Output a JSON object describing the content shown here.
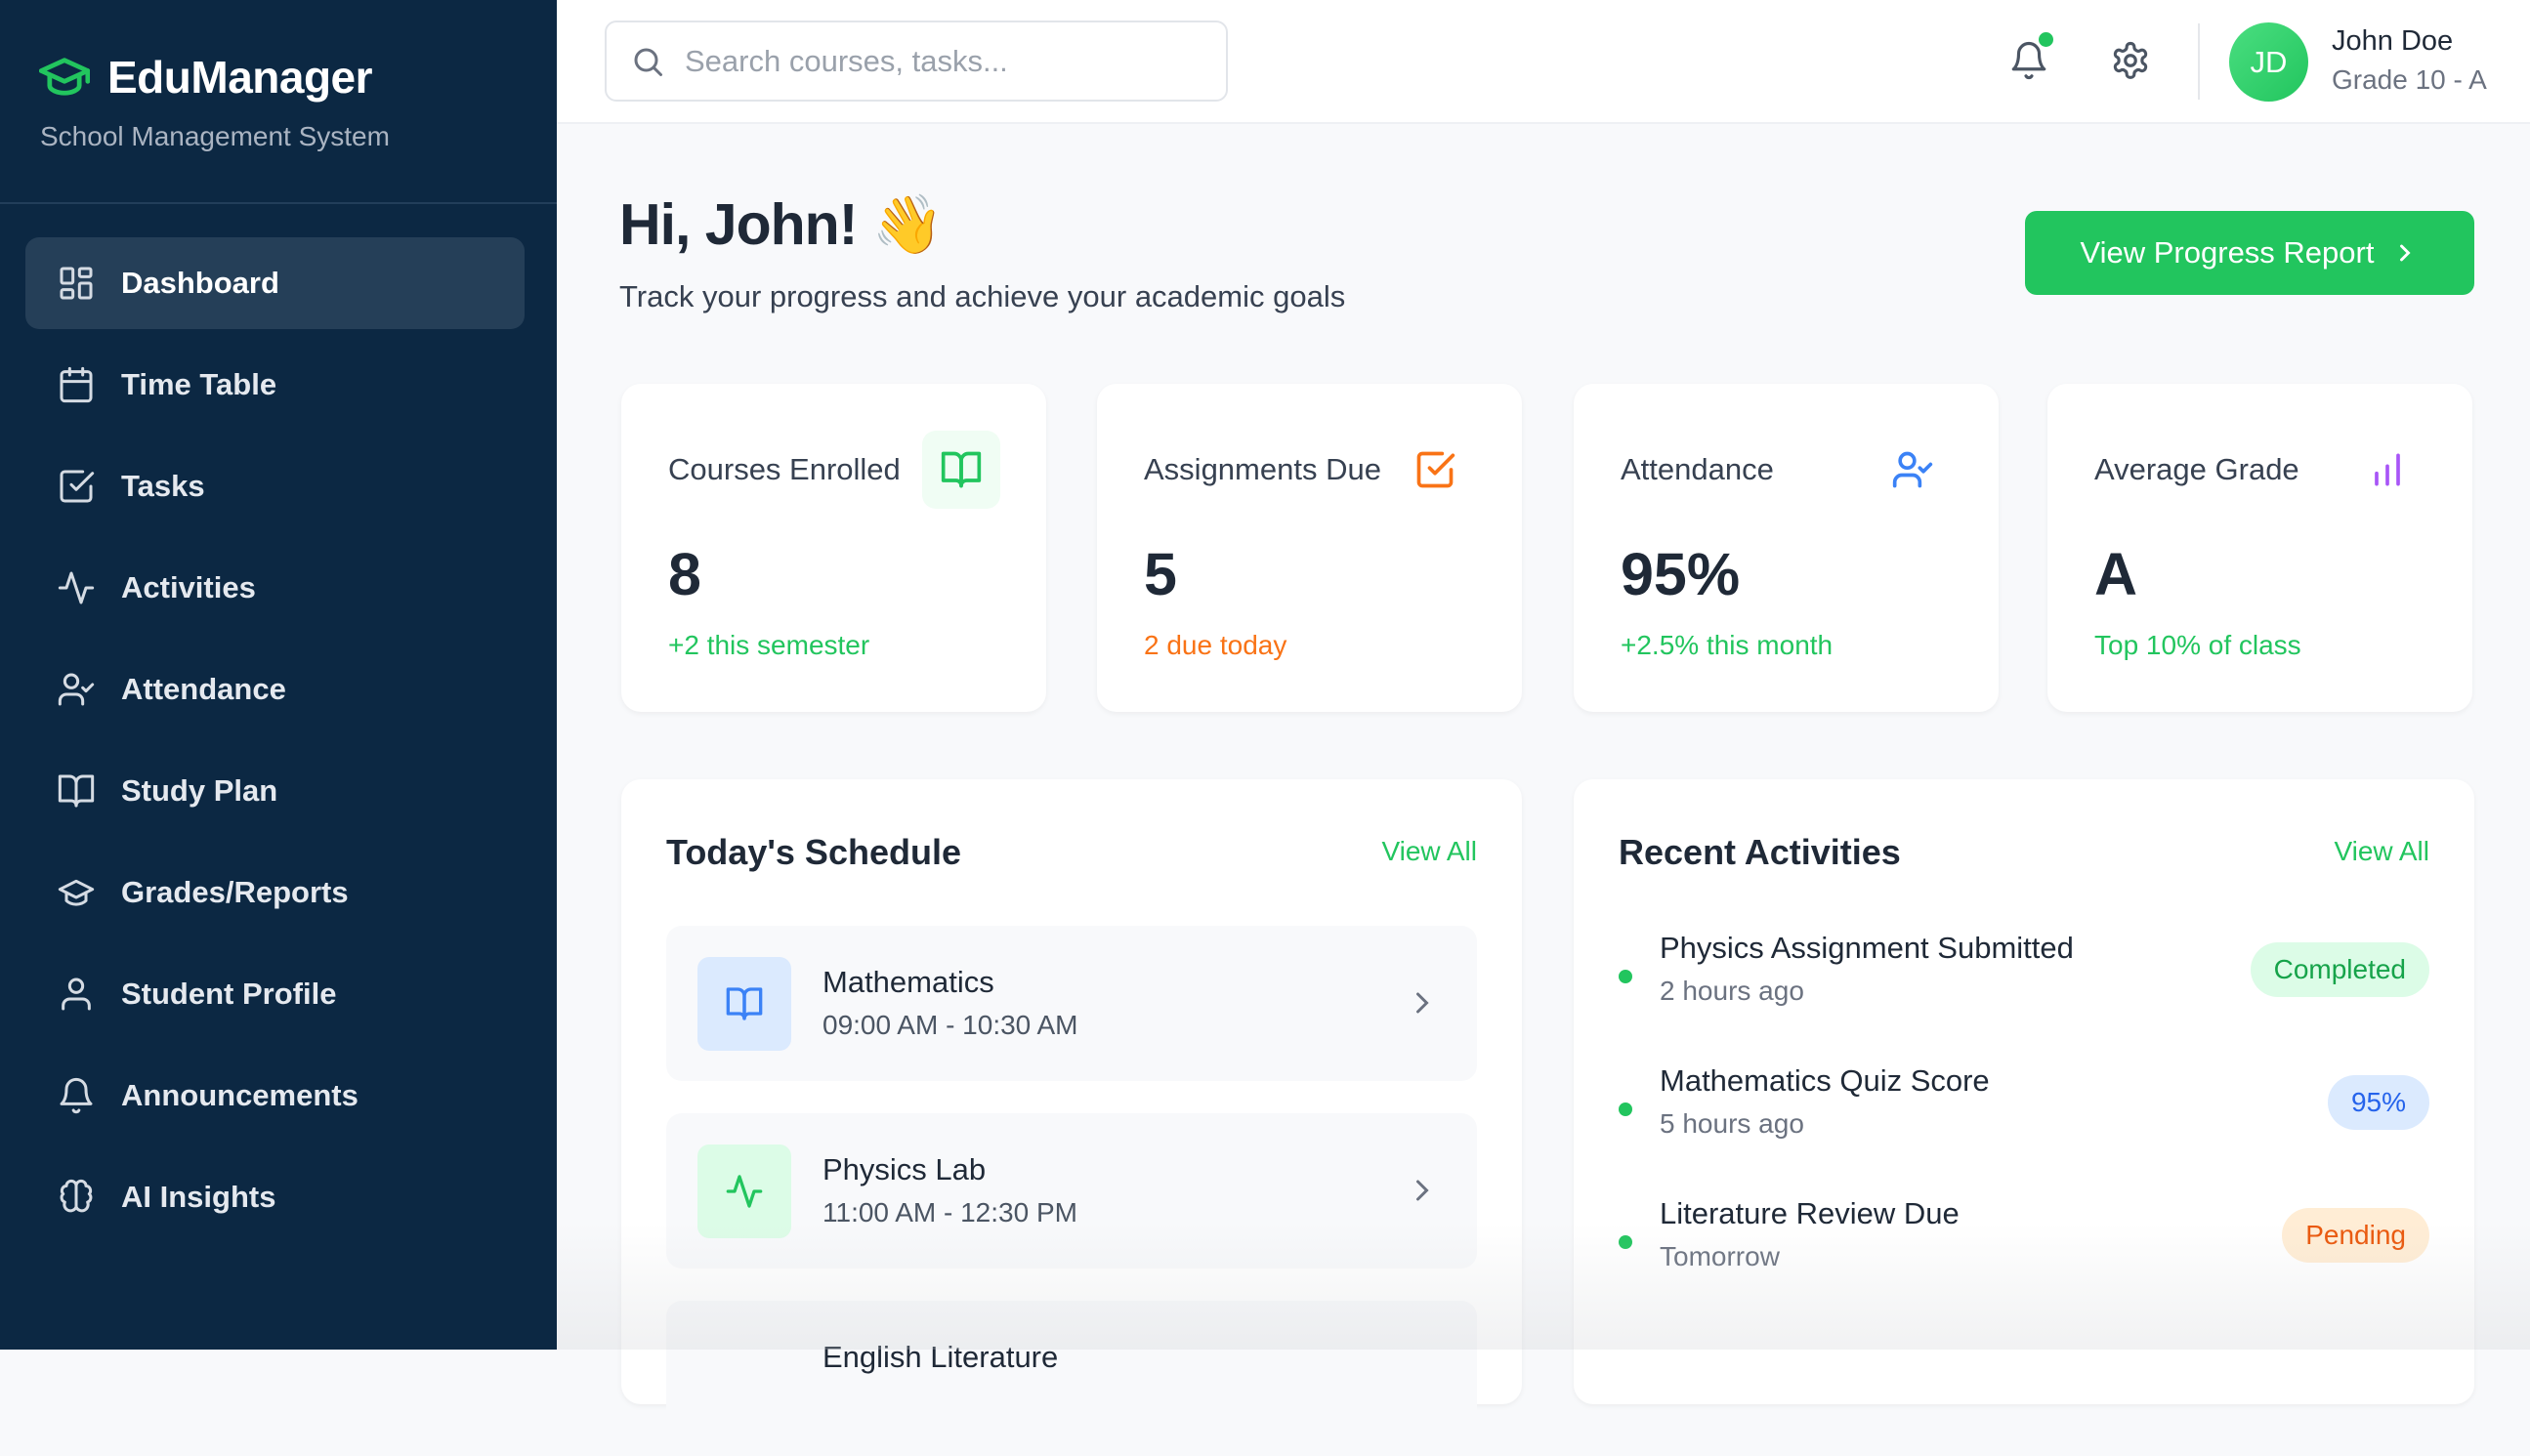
{
  "app": {
    "name": "EduManager",
    "subtitle": "School Management System"
  },
  "sidebar": {
    "items": [
      {
        "label": "Dashboard",
        "icon": "layout-grid-icon",
        "active": true
      },
      {
        "label": "Time Table",
        "icon": "calendar-icon"
      },
      {
        "label": "Tasks",
        "icon": "check-square-icon"
      },
      {
        "label": "Activities",
        "icon": "activity-icon"
      },
      {
        "label": "Attendance",
        "icon": "user-check-icon"
      },
      {
        "label": "Study Plan",
        "icon": "book-open-icon"
      },
      {
        "label": "Grades/Reports",
        "icon": "graduation-cap-icon"
      },
      {
        "label": "Student Profile",
        "icon": "user-icon"
      },
      {
        "label": "Announcements",
        "icon": "bell-icon"
      },
      {
        "label": "AI Insights",
        "icon": "brain-icon"
      }
    ]
  },
  "header": {
    "search_placeholder": "Search courses, tasks...",
    "user": {
      "initials": "JD",
      "name": "John Doe",
      "grade": "Grade 10 - A"
    }
  },
  "welcome": {
    "title": "Hi, John! 👋",
    "subtitle": "Track your progress and achieve your academic goals",
    "button": "View Progress Report"
  },
  "stats": [
    {
      "title": "Courses Enrolled",
      "value": "8",
      "sub": "+2 this semester",
      "sub_color": "#22c55e",
      "icon": "book-open-icon",
      "icon_color": "#22c55e"
    },
    {
      "title": "Assignments Due",
      "value": "5",
      "sub": "2 due today",
      "sub_color": "#f97316",
      "icon": "check-square-icon",
      "icon_color": "#f97316"
    },
    {
      "title": "Attendance",
      "value": "95%",
      "sub": "+2.5% this month",
      "sub_color": "#22c55e",
      "icon": "user-check-icon",
      "icon_color": "#3b82f6"
    },
    {
      "title": "Average Grade",
      "value": "A",
      "sub": "Top 10% of class",
      "sub_color": "#22c55e",
      "icon": "bar-chart-icon",
      "icon_color": "#a855f7"
    }
  ],
  "schedule": {
    "title": "Today's Schedule",
    "view_all": "View All",
    "items": [
      {
        "name": "Mathematics",
        "time": "09:00 AM - 10:30 AM"
      },
      {
        "name": "Physics Lab",
        "time": "11:00 AM - 12:30 PM"
      },
      {
        "name": "English Literature",
        "time": ""
      }
    ]
  },
  "activities": {
    "title": "Recent Activities",
    "view_all": "View All",
    "items": [
      {
        "title": "Physics Assignment Submitted",
        "time": "2 hours ago",
        "badge": "Completed",
        "badge_color": "#16a34a"
      },
      {
        "title": "Mathematics Quiz Score",
        "time": "5 hours ago",
        "badge": "95%",
        "badge_color": "#2563eb"
      },
      {
        "title": "Literature Review Due",
        "time": "Tomorrow",
        "badge": "Pending",
        "badge_color": "#ea580c"
      }
    ]
  }
}
